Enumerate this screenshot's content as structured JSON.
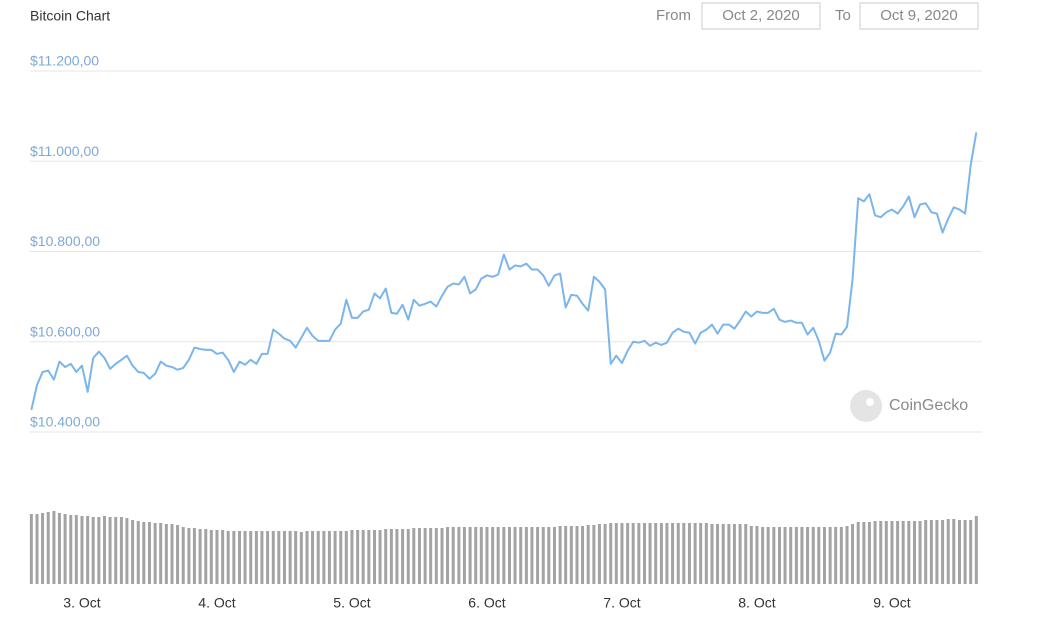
{
  "title": "Bitcoin Chart",
  "date_range": {
    "from_label": "From",
    "from": "Oct 2, 2020",
    "to_label": "To",
    "to": "Oct 9, 2020"
  },
  "watermark": "CoinGecko",
  "chart_data": {
    "type": "line",
    "x": [
      2.625,
      2.667,
      2.708,
      2.75,
      2.792,
      2.833,
      2.875,
      2.917,
      2.958,
      3,
      3.042,
      3.083,
      3.125,
      3.167,
      3.208,
      3.25,
      3.292,
      3.333,
      3.375,
      3.417,
      3.458,
      3.5,
      3.542,
      3.583,
      3.625,
      3.667,
      3.708,
      3.75,
      3.792,
      3.833,
      3.875,
      3.917,
      3.958,
      4,
      4.042,
      4.083,
      4.125,
      4.167,
      4.208,
      4.25,
      4.292,
      4.333,
      4.375,
      4.417,
      4.458,
      4.5,
      4.542,
      4.583,
      4.625,
      4.667,
      4.708,
      4.75,
      4.792,
      4.833,
      4.875,
      4.917,
      4.958,
      5,
      5.042,
      5.083,
      5.125,
      5.167,
      5.208,
      5.25,
      5.292,
      5.333,
      5.375,
      5.417,
      5.458,
      5.5,
      5.542,
      5.583,
      5.625,
      5.667,
      5.708,
      5.75,
      5.792,
      5.833,
      5.875,
      5.917,
      5.958,
      6,
      6.042,
      6.083,
      6.125,
      6.167,
      6.208,
      6.25,
      6.292,
      6.333,
      6.375,
      6.417,
      6.458,
      6.5,
      6.542,
      6.583,
      6.625,
      6.667,
      6.708,
      6.75,
      6.792,
      6.833,
      6.875,
      6.917,
      6.958,
      7,
      7.042,
      7.083,
      7.125,
      7.167,
      7.208,
      7.25,
      7.292,
      7.333,
      7.375,
      7.417,
      7.458,
      7.5,
      7.542,
      7.583,
      7.625,
      7.667,
      7.708,
      7.75,
      7.792,
      7.833,
      7.875,
      7.917,
      7.958,
      8,
      8.042,
      8.083,
      8.125,
      8.167,
      8.208,
      8.25,
      8.292,
      8.333,
      8.375,
      8.417,
      8.458,
      8.5,
      8.542,
      8.583,
      8.625,
      8.667,
      8.708,
      8.75,
      8.792,
      8.833,
      8.875,
      8.917,
      8.958,
      9,
      9.042,
      9.083,
      9.125,
      9.167,
      9.208,
      9.25,
      9.292,
      9.333,
      9.375,
      9.417,
      9.458,
      9.5,
      9.542,
      9.583,
      9.625
    ],
    "series": [
      {
        "color": "#7cb5ec",
        "values": [
          10449,
          10504,
          10533,
          10536,
          10516,
          10556,
          10544,
          10551,
          10533,
          10547,
          10489,
          10564,
          10578,
          10564,
          10540,
          10551,
          10560,
          10569,
          10547,
          10533,
          10531,
          10518,
          10529,
          10556,
          10547,
          10544,
          10538,
          10542,
          10560,
          10587,
          10584,
          10582,
          10582,
          10573,
          10576,
          10560,
          10533,
          10556,
          10549,
          10560,
          10551,
          10573,
          10573,
          10627,
          10618,
          10607,
          10602,
          10587,
          10609,
          10631,
          10613,
          10602,
          10602,
          10602,
          10627,
          10640,
          10693,
          10653,
          10653,
          10667,
          10671,
          10707,
          10696,
          10718,
          10664,
          10662,
          10682,
          10649,
          10693,
          10680,
          10684,
          10689,
          10678,
          10702,
          10722,
          10729,
          10727,
          10744,
          10707,
          10716,
          10740,
          10747,
          10744,
          10749,
          10793,
          10760,
          10769,
          10767,
          10773,
          10760,
          10760,
          10747,
          10724,
          10747,
          10751,
          10676,
          10704,
          10702,
          10684,
          10669,
          10744,
          10733,
          10716,
          10551,
          10569,
          10553,
          10580,
          10600,
          10598,
          10602,
          10591,
          10598,
          10593,
          10598,
          10620,
          10629,
          10622,
          10620,
          10596,
          10620,
          10627,
          10638,
          10618,
          10638,
          10638,
          10629,
          10647,
          10667,
          10656,
          10667,
          10664,
          10664,
          10673,
          10649,
          10644,
          10647,
          10642,
          10642,
          10616,
          10631,
          10602,
          10558,
          10576,
          10618,
          10616,
          10633,
          10738,
          10918,
          10911,
          10927,
          10880,
          10876,
          10887,
          10893,
          10884,
          10900,
          10922,
          10876,
          10904,
          10907,
          10887,
          10884,
          10842,
          10873,
          10898,
          10893,
          10884,
          10991,
          11064
        ]
      }
    ],
    "volume": {
      "type": "bar",
      "color": "#a3a3a3",
      "values": [
        70,
        70,
        71,
        72,
        73,
        71,
        70,
        69,
        69,
        68,
        68,
        67,
        67,
        68,
        67,
        67,
        67,
        66,
        64,
        63,
        62,
        62,
        61,
        61,
        60,
        60,
        59,
        57,
        56,
        56,
        55,
        55,
        54,
        54,
        54,
        53,
        53,
        53,
        53,
        53,
        53,
        53,
        53,
        53,
        53,
        53,
        53,
        53,
        52,
        53,
        53,
        53,
        53,
        53,
        53,
        53,
        53,
        54,
        54,
        54,
        54,
        54,
        54,
        55,
        55,
        55,
        55,
        55,
        56,
        56,
        56,
        56,
        56,
        56,
        57,
        57,
        57,
        57,
        57,
        57,
        57,
        57,
        57,
        57,
        57,
        57,
        57,
        57,
        57,
        57,
        57,
        57,
        57,
        57,
        58,
        58,
        58,
        58,
        58,
        59,
        59,
        60,
        60,
        61,
        61,
        61,
        61,
        61,
        61,
        61,
        61,
        61,
        61,
        61,
        61,
        61,
        61,
        61,
        61,
        61,
        61,
        60,
        60,
        60,
        60,
        60,
        60,
        60,
        58,
        58,
        57,
        57,
        57,
        57,
        57,
        57,
        57,
        57,
        57,
        57,
        57,
        57,
        57,
        57,
        57,
        58,
        60,
        62,
        62,
        62,
        63,
        63,
        63,
        63,
        63,
        63,
        63,
        63,
        63,
        64,
        64,
        64,
        64,
        65,
        65,
        64,
        64,
        64,
        68
      ]
    },
    "xlim": [
      2.615,
      9.667
    ],
    "ylim": [
      10400,
      11200
    ],
    "xticks": [
      {
        "value": 3,
        "label": "3. Oct"
      },
      {
        "value": 4,
        "label": "4. Oct"
      },
      {
        "value": 5,
        "label": "5. Oct"
      },
      {
        "value": 6,
        "label": "6. Oct"
      },
      {
        "value": 7,
        "label": "7. Oct"
      },
      {
        "value": 8,
        "label": "8. Oct"
      },
      {
        "value": 9,
        "label": "9. Oct"
      }
    ],
    "yticks": [
      {
        "value": 10400,
        "label": "$10.400,00"
      },
      {
        "value": 10600,
        "label": "$10.600,00"
      },
      {
        "value": 10800,
        "label": "$10.800,00"
      },
      {
        "value": 11000,
        "label": "$11.000,00"
      },
      {
        "value": 11200,
        "label": "$11.200,00"
      }
    ],
    "grid": true
  }
}
